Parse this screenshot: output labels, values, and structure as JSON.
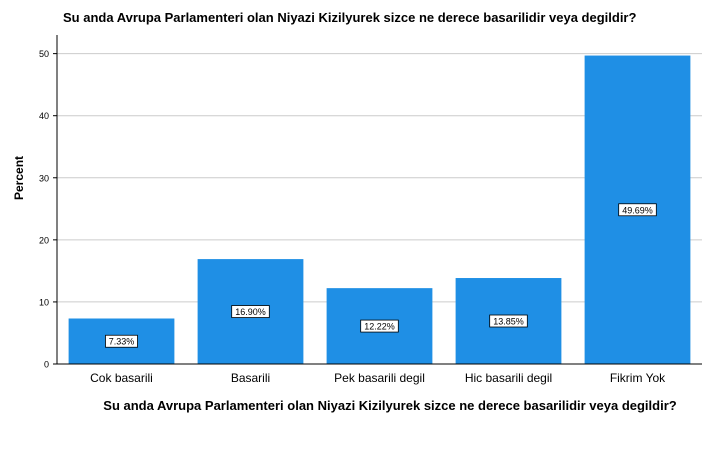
{
  "chart_data": {
    "type": "bar",
    "title": "Su anda Avrupa Parlamenteri olan Niyazi Kizilyurek sizce ne derece basarilidir veya degildir?",
    "xlabel": "Su anda Avrupa Parlamenteri olan Niyazi Kizilyurek sizce ne derece basarilidir veya degildir?",
    "ylabel": "Percent",
    "categories": [
      "Cok basarili",
      "Basarili",
      "Pek basarili degil",
      "Hic basarili degil",
      "Fikrim Yok"
    ],
    "values": [
      7.33,
      16.9,
      12.22,
      13.85,
      49.69
    ],
    "data_labels": [
      "7.33%",
      "16.90%",
      "12.22%",
      "13.85%",
      "49.69%"
    ],
    "yticks": [
      0,
      10,
      20,
      30,
      40,
      50
    ],
    "ylim": [
      0,
      53
    ],
    "grid": true,
    "bar_color": "#1f8fe5",
    "grid_color": "#cccccc"
  }
}
